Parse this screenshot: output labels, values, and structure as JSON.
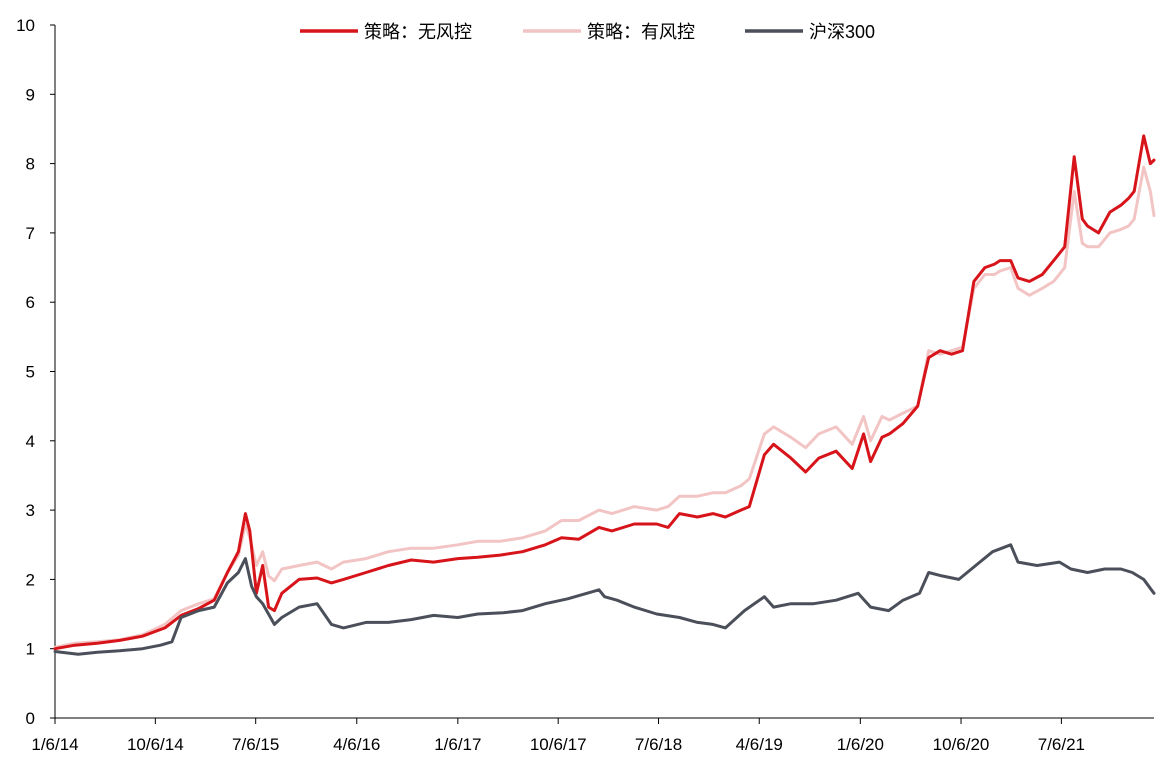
{
  "chart_data": {
    "type": "line",
    "title": "",
    "xlabel": "",
    "ylabel": "",
    "ylim": [
      0,
      10
    ],
    "yticks": [
      0,
      1,
      2,
      3,
      4,
      5,
      6,
      7,
      8,
      9,
      10
    ],
    "xticks": [
      "1/6/14",
      "10/6/14",
      "7/6/15",
      "4/6/16",
      "1/6/17",
      "10/6/17",
      "7/6/18",
      "4/6/19",
      "1/6/20",
      "10/6/20",
      "7/6/21"
    ],
    "xticks_iso": [
      "2014-01-06",
      "2014-10-06",
      "2015-07-06",
      "2016-04-06",
      "2017-01-06",
      "2017-10-06",
      "2018-07-06",
      "2019-04-06",
      "2020-01-06",
      "2020-10-06",
      "2021-07-06"
    ],
    "xlim": [
      "2014-01-06",
      "2022-03-15"
    ],
    "grid": false,
    "legend_position": "top",
    "series": [
      {
        "name": "策略：无风控",
        "color": "#d7141a",
        "x": [
          "2014-01-06",
          "2014-03-01",
          "2014-05-01",
          "2014-07-01",
          "2014-09-01",
          "2014-11-01",
          "2014-12-15",
          "2015-02-01",
          "2015-03-15",
          "2015-04-20",
          "2015-05-20",
          "2015-06-08",
          "2015-06-20",
          "2015-07-08",
          "2015-07-25",
          "2015-08-10",
          "2015-08-26",
          "2015-09-15",
          "2015-11-01",
          "2015-12-20",
          "2016-01-28",
          "2016-03-01",
          "2016-05-01",
          "2016-07-01",
          "2016-09-01",
          "2016-11-01",
          "2017-01-06",
          "2017-03-01",
          "2017-05-01",
          "2017-07-01",
          "2017-09-01",
          "2017-10-15",
          "2017-12-01",
          "2018-01-25",
          "2018-03-01",
          "2018-05-01",
          "2018-07-01",
          "2018-08-01",
          "2018-09-01",
          "2018-10-20",
          "2018-12-01",
          "2019-01-04",
          "2019-02-15",
          "2019-03-10",
          "2019-04-20",
          "2019-05-15",
          "2019-07-01",
          "2019-08-10",
          "2019-09-15",
          "2019-11-01",
          "2019-12-15",
          "2020-01-15",
          "2020-02-03",
          "2020-03-05",
          "2020-03-25",
          "2020-05-01",
          "2020-06-10",
          "2020-07-01",
          "2020-07-10",
          "2020-08-10",
          "2020-09-10",
          "2020-10-10",
          "2020-11-10",
          "2020-12-10",
          "2021-01-05",
          "2021-01-20",
          "2021-02-18",
          "2021-03-10",
          "2021-04-10",
          "2021-05-15",
          "2021-06-15",
          "2021-07-15",
          "2021-08-10",
          "2021-09-01",
          "2021-09-15",
          "2021-10-15",
          "2021-11-15",
          "2021-12-15",
          "2022-01-05",
          "2022-01-20",
          "2022-02-15",
          "2022-03-05",
          "2022-03-15"
        ],
        "values": [
          1.0,
          1.05,
          1.08,
          1.12,
          1.18,
          1.3,
          1.48,
          1.58,
          1.7,
          2.1,
          2.4,
          2.95,
          2.7,
          1.8,
          2.2,
          1.6,
          1.55,
          1.8,
          2.0,
          2.02,
          1.95,
          2.0,
          2.1,
          2.2,
          2.28,
          2.25,
          2.3,
          2.32,
          2.35,
          2.4,
          2.5,
          2.6,
          2.58,
          2.75,
          2.7,
          2.8,
          2.8,
          2.75,
          2.95,
          2.9,
          2.95,
          2.9,
          3.0,
          3.05,
          3.8,
          3.95,
          3.75,
          3.55,
          3.75,
          3.85,
          3.6,
          4.1,
          3.7,
          4.05,
          4.1,
          4.25,
          4.5,
          5.0,
          5.2,
          5.3,
          5.25,
          5.3,
          6.3,
          6.5,
          6.55,
          6.6,
          6.6,
          6.35,
          6.3,
          6.4,
          6.6,
          6.8,
          8.1,
          7.2,
          7.1,
          7.0,
          7.3,
          7.4,
          7.5,
          7.6,
          8.4,
          8.0,
          8.05
        ]
      },
      {
        "name": "策略：有风控",
        "color": "#f2c4c4",
        "x": [
          "2014-01-06",
          "2014-03-01",
          "2014-05-01",
          "2014-07-01",
          "2014-09-01",
          "2014-11-01",
          "2014-12-15",
          "2015-02-01",
          "2015-03-15",
          "2015-04-20",
          "2015-05-20",
          "2015-06-08",
          "2015-06-20",
          "2015-07-08",
          "2015-07-25",
          "2015-08-10",
          "2015-08-26",
          "2015-09-15",
          "2015-11-01",
          "2015-12-20",
          "2016-01-28",
          "2016-03-01",
          "2016-05-01",
          "2016-07-01",
          "2016-09-01",
          "2016-11-01",
          "2017-01-06",
          "2017-03-01",
          "2017-05-01",
          "2017-07-01",
          "2017-09-01",
          "2017-10-15",
          "2017-12-01",
          "2018-01-25",
          "2018-03-01",
          "2018-05-01",
          "2018-07-01",
          "2018-08-01",
          "2018-09-01",
          "2018-10-20",
          "2018-12-01",
          "2019-01-04",
          "2019-02-15",
          "2019-03-10",
          "2019-04-20",
          "2019-05-15",
          "2019-07-01",
          "2019-08-10",
          "2019-09-15",
          "2019-11-01",
          "2019-12-15",
          "2020-01-15",
          "2020-02-03",
          "2020-03-05",
          "2020-03-25",
          "2020-05-01",
          "2020-06-10",
          "2020-07-01",
          "2020-07-10",
          "2020-08-10",
          "2020-09-10",
          "2020-10-10",
          "2020-11-10",
          "2020-12-10",
          "2021-01-05",
          "2021-01-20",
          "2021-02-18",
          "2021-03-10",
          "2021-04-10",
          "2021-05-15",
          "2021-06-15",
          "2021-07-15",
          "2021-08-10",
          "2021-09-01",
          "2021-09-15",
          "2021-10-15",
          "2021-11-15",
          "2021-12-15",
          "2022-01-05",
          "2022-01-20",
          "2022-02-15",
          "2022-03-05",
          "2022-03-15"
        ],
        "values": [
          1.02,
          1.08,
          1.1,
          1.13,
          1.2,
          1.35,
          1.55,
          1.65,
          1.72,
          2.1,
          2.35,
          2.8,
          2.6,
          2.2,
          2.4,
          2.05,
          1.98,
          2.15,
          2.2,
          2.25,
          2.15,
          2.25,
          2.3,
          2.4,
          2.45,
          2.45,
          2.5,
          2.55,
          2.55,
          2.6,
          2.7,
          2.85,
          2.85,
          3.0,
          2.95,
          3.05,
          3.0,
          3.05,
          3.2,
          3.2,
          3.25,
          3.25,
          3.35,
          3.45,
          4.1,
          4.2,
          4.05,
          3.9,
          4.1,
          4.2,
          3.95,
          4.35,
          4.0,
          4.35,
          4.3,
          4.4,
          4.5,
          5.05,
          5.3,
          5.25,
          5.3,
          5.35,
          6.2,
          6.4,
          6.4,
          6.45,
          6.5,
          6.2,
          6.1,
          6.2,
          6.3,
          6.5,
          7.6,
          6.85,
          6.8,
          6.8,
          7.0,
          7.05,
          7.1,
          7.2,
          7.95,
          7.6,
          7.25
        ]
      },
      {
        "name": "沪深300",
        "color": "#4a4f5a",
        "x": [
          "2014-01-06",
          "2014-03-10",
          "2014-05-01",
          "2014-07-01",
          "2014-09-01",
          "2014-10-20",
          "2014-11-20",
          "2014-12-15",
          "2015-02-01",
          "2015-03-15",
          "2015-04-20",
          "2015-05-20",
          "2015-06-08",
          "2015-06-25",
          "2015-07-08",
          "2015-07-25",
          "2015-08-26",
          "2015-09-15",
          "2015-11-01",
          "2015-12-20",
          "2016-01-28",
          "2016-03-01",
          "2016-05-01",
          "2016-07-01",
          "2016-09-01",
          "2016-11-01",
          "2017-01-06",
          "2017-03-01",
          "2017-05-10",
          "2017-07-01",
          "2017-09-01",
          "2017-11-01",
          "2018-01-25",
          "2018-02-09",
          "2018-03-15",
          "2018-05-01",
          "2018-07-01",
          "2018-09-01",
          "2018-10-20",
          "2018-12-01",
          "2019-01-04",
          "2019-02-25",
          "2019-04-20",
          "2019-05-15",
          "2019-07-01",
          "2019-09-01",
          "2019-11-01",
          "2019-12-31",
          "2020-02-03",
          "2020-03-23",
          "2020-05-01",
          "2020-06-15",
          "2020-07-10",
          "2020-08-15",
          "2020-09-30",
          "2020-11-15",
          "2020-12-31",
          "2021-02-18",
          "2021-03-10",
          "2021-05-01",
          "2021-07-01",
          "2021-08-01",
          "2021-09-15",
          "2021-11-01",
          "2021-12-15",
          "2022-01-15",
          "2022-02-15",
          "2022-03-08",
          "2022-03-15"
        ],
        "values": [
          0.96,
          0.92,
          0.95,
          0.97,
          1.0,
          1.05,
          1.1,
          1.45,
          1.55,
          1.6,
          1.95,
          2.1,
          2.3,
          1.9,
          1.75,
          1.65,
          1.35,
          1.45,
          1.6,
          1.65,
          1.35,
          1.3,
          1.38,
          1.38,
          1.42,
          1.48,
          1.45,
          1.5,
          1.52,
          1.55,
          1.65,
          1.72,
          1.85,
          1.75,
          1.7,
          1.6,
          1.5,
          1.45,
          1.38,
          1.35,
          1.3,
          1.55,
          1.75,
          1.6,
          1.65,
          1.65,
          1.7,
          1.8,
          1.6,
          1.55,
          1.7,
          1.8,
          2.1,
          2.05,
          2.0,
          2.2,
          2.4,
          2.5,
          2.25,
          2.2,
          2.25,
          2.15,
          2.1,
          2.15,
          2.15,
          2.1,
          2.0,
          1.85,
          1.8
        ]
      }
    ]
  }
}
